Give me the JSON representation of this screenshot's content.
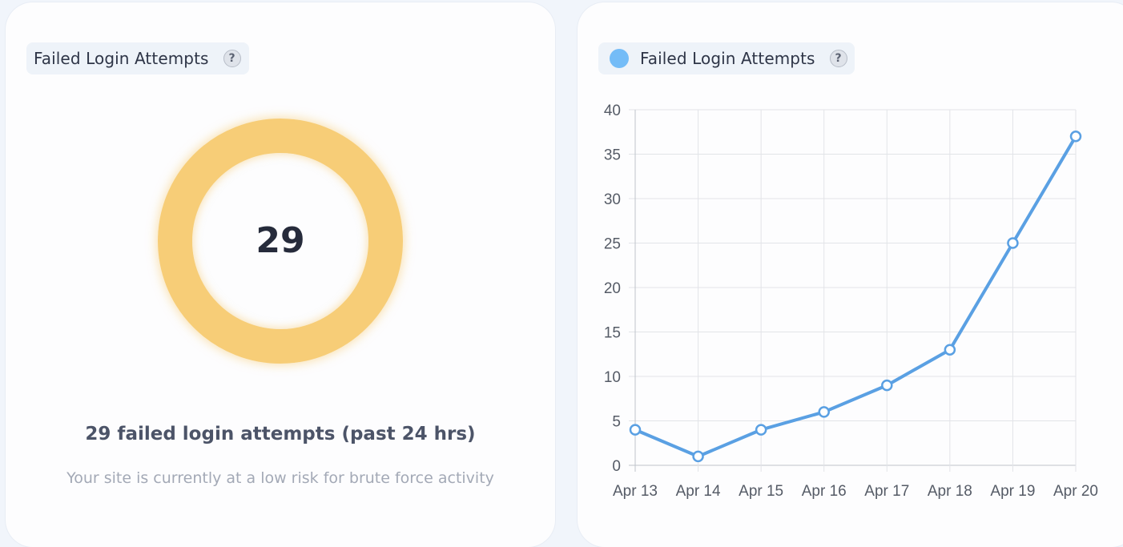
{
  "left_card": {
    "title": "Failed Login Attempts",
    "help_label": "?",
    "donut_value": "29",
    "donut_color": "#f7cd77",
    "summary": "29 failed login attempts (past 24 hrs)",
    "risk_text": "Your site is currently at a low risk for brute force activity"
  },
  "right_card": {
    "legend_label": "Failed Login Attempts",
    "help_label": "?",
    "legend_color": "#74bcf7"
  },
  "chart_data": {
    "type": "line",
    "title": "",
    "xlabel": "",
    "ylabel": "",
    "categories": [
      "Apr 13",
      "Apr 14",
      "Apr 15",
      "Apr 16",
      "Apr 17",
      "Apr 18",
      "Apr 19",
      "Apr 20"
    ],
    "series": [
      {
        "name": "Failed Login Attempts",
        "values": [
          4,
          1,
          4,
          6,
          9,
          13,
          25,
          37
        ],
        "color": "#5aa0e3"
      }
    ],
    "ylim": [
      0,
      40
    ],
    "yticks": [
      "0",
      "5",
      "10",
      "15",
      "20",
      "25",
      "30",
      "35",
      "40"
    ],
    "grid": true,
    "legend": "top-left"
  }
}
